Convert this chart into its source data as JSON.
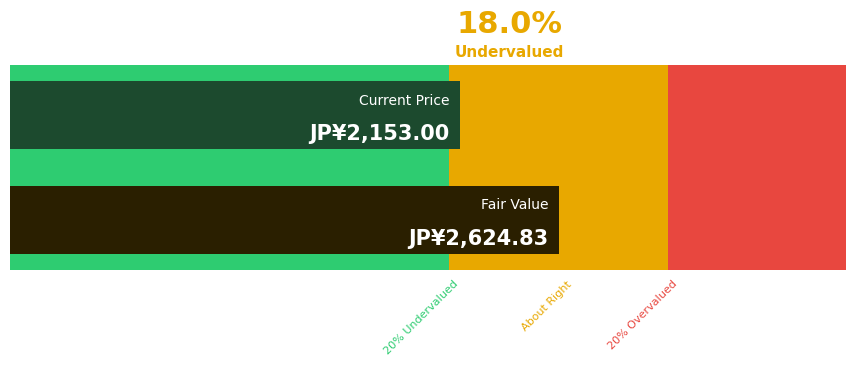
{
  "title_percent": "18.0%",
  "title_label": "Undervalued",
  "title_color": "#E8A800",
  "current_price_label": "Current Price",
  "current_price_value": "JP¥2,153.00",
  "fair_value_label": "Fair Value",
  "fair_value_value": "JP¥2,624.83",
  "current_price": 2153.0,
  "fair_value": 2624.83,
  "total_range_max": 4000,
  "color_green_light": "#2ECC71",
  "color_orange": "#E8A800",
  "color_red": "#E8473F",
  "color_dark_box_current": "#1C4A2E",
  "color_dark_box_fair": "#2A1F00",
  "label_20under": "20% Undervalued",
  "label_about": "About Right",
  "label_20over": "20% Overvalued",
  "undervalued_boundary": 2099.864,
  "overvalued_boundary": 3149.796,
  "background_color": "#ffffff"
}
